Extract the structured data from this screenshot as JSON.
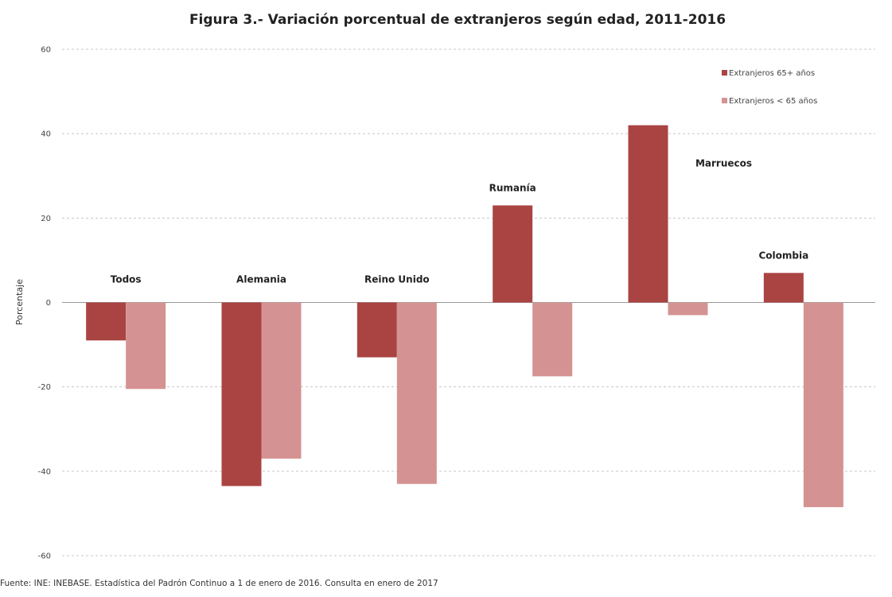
{
  "chart_data": {
    "type": "bar",
    "title": "Figura 3.- Variación porcentual de extranjeros según edad, 2011-2016",
    "xlabel": "",
    "ylabel": "Porcentaje",
    "ylim": [
      -60,
      60
    ],
    "yticks": [
      60,
      40,
      20,
      0,
      -20,
      -40,
      -60
    ],
    "grid": true,
    "legend_position": "top-right",
    "categories": [
      "Todos",
      "Alemania",
      "Reino Unido",
      "Rumanía",
      "Marruecos",
      "Colombia"
    ],
    "series": [
      {
        "name": "Extranjeros 65+ años",
        "color": "#A94442",
        "values": [
          -9,
          -43.5,
          -13,
          23,
          42,
          7
        ]
      },
      {
        "name": "Extranjeros < 65 años",
        "color": "#D49392",
        "values": [
          -20.5,
          -37,
          -43,
          -17.5,
          -3,
          -48.5
        ]
      }
    ]
  },
  "source": "Fuente: INE: INEBASE. Estadística del Padrón Continuo a 1 de enero de 2016. Consulta en enero de 2017"
}
